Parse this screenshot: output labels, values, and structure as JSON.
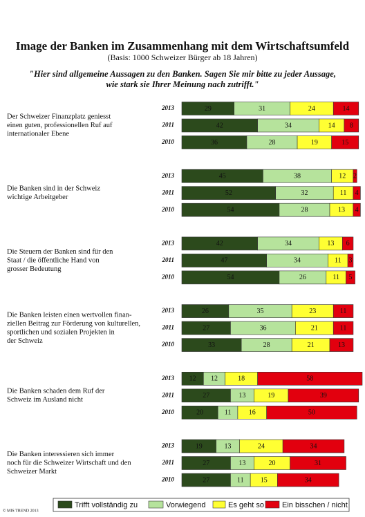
{
  "chart_data": {
    "type": "stacked-horizontal-bar",
    "title": "Image der Banken im Zusammenhang mit dem Wirtschaftsumfeld",
    "subtitle": "(Basis: 1000 Schweizer Bürger ab 18 Jahren)",
    "question": [
      "\"Hier sind allgemeine Aussagen zu den Banken. Sagen Sie mir bitte zu jeder Aussage,",
      "wie stark sie Ihrer Meinung nach zutrifft.\""
    ],
    "xlim": [
      0,
      100
    ],
    "series": [
      {
        "name": "Trifft vollständig zu",
        "color": "#2c4a1c"
      },
      {
        "name": "Vorwiegend",
        "color": "#b6e39c"
      },
      {
        "name": "Es geht so",
        "color": "#ffff33"
      },
      {
        "name": "Ein bisschen / nicht",
        "color": "#e2000e"
      }
    ],
    "groups": [
      {
        "label": [
          "Der Schweizer Finanzplatz geniesst",
          "einen guten, professionellen Ruf auf",
          "internationaler Ebene"
        ],
        "rows": [
          {
            "year": "2013",
            "values": [
              29,
              31,
              24,
              14
            ]
          },
          {
            "year": "2011",
            "values": [
              42,
              34,
              14,
              8
            ]
          },
          {
            "year": "2010",
            "values": [
              36,
              28,
              19,
              15
            ]
          }
        ]
      },
      {
        "label": [
          "Die Banken sind in der Schweiz",
          "wichtige Arbeitgeber"
        ],
        "rows": [
          {
            "year": "2013",
            "values": [
              45,
              38,
              12,
              2
            ]
          },
          {
            "year": "2011",
            "values": [
              52,
              32,
              11,
              4
            ]
          },
          {
            "year": "2010",
            "values": [
              54,
              28,
              13,
              4
            ]
          }
        ]
      },
      {
        "label": [
          "Die Steuern der Banken sind für den",
          "Staat / die öffentliche Hand von",
          "grosser Bedeutung"
        ],
        "rows": [
          {
            "year": "2013",
            "values": [
              42,
              34,
              13,
              6
            ]
          },
          {
            "year": "2011",
            "values": [
              47,
              34,
              11,
              3
            ]
          },
          {
            "year": "2010",
            "values": [
              54,
              26,
              11,
              5
            ]
          }
        ]
      },
      {
        "label": [
          "Die Banken leisten einen wertvollen finan-",
          "ziellen Beitrag zur Förderung von kulturellen,",
          "sportlichen und sozialen Projekten in",
          "der Schweiz"
        ],
        "rows": [
          {
            "year": "2013",
            "values": [
              26,
              35,
              23,
              11
            ]
          },
          {
            "year": "2011",
            "values": [
              27,
              36,
              21,
              11
            ]
          },
          {
            "year": "2010",
            "values": [
              33,
              28,
              21,
              13
            ]
          }
        ]
      },
      {
        "label": [
          "Die Banken schaden dem Ruf der",
          "Schweiz im Ausland nicht"
        ],
        "rows": [
          {
            "year": "2013",
            "values": [
              12,
              12,
              18,
              58
            ]
          },
          {
            "year": "2011",
            "values": [
              27,
              13,
              19,
              39
            ]
          },
          {
            "year": "2010",
            "values": [
              20,
              11,
              16,
              50
            ]
          }
        ]
      },
      {
        "label": [
          "Die Banken interessieren sich immer",
          "noch für die Schweizer Wirtschaft und den",
          "Schweizer Markt"
        ],
        "rows": [
          {
            "year": "2013",
            "values": [
              19,
              13,
              24,
              34
            ]
          },
          {
            "year": "2011",
            "values": [
              27,
              13,
              20,
              31
            ]
          },
          {
            "year": "2010",
            "values": [
              27,
              11,
              15,
              34
            ]
          }
        ]
      }
    ],
    "source": "© MIS TREND 2013"
  }
}
